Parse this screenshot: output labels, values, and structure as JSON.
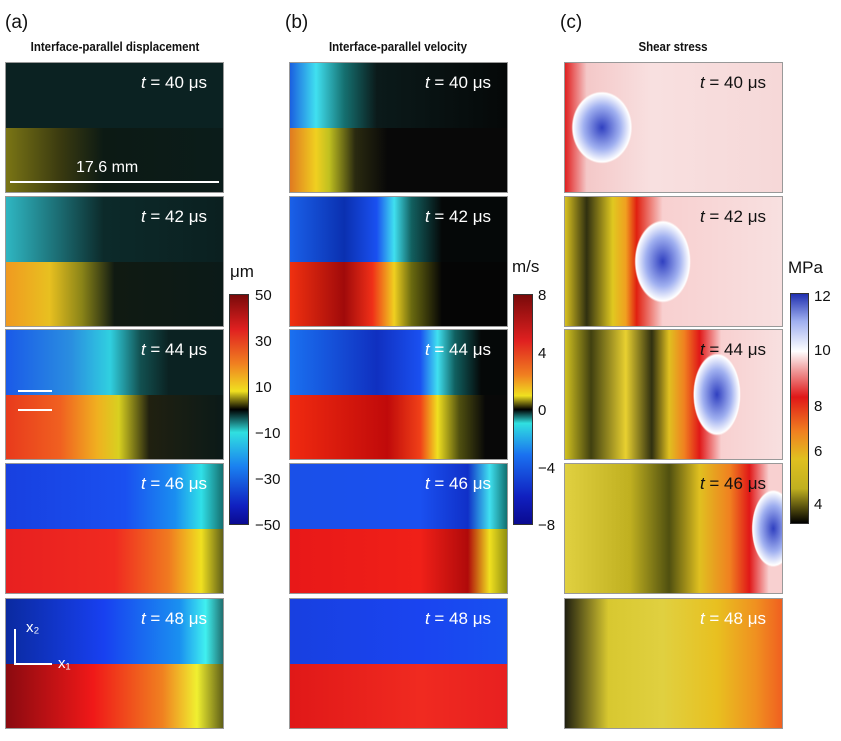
{
  "columns": [
    {
      "label": "(a)",
      "title": "Interface-parallel displacement",
      "unit": "μm",
      "ticks": [
        "50",
        "30",
        "10",
        "−10",
        "−30",
        "−50"
      ],
      "scale_bar": "17.6 mm"
    },
    {
      "label": "(b)",
      "title": "Interface-parallel velocity",
      "unit": "m/s",
      "ticks": [
        "8",
        "4",
        "0",
        "−4",
        "−8"
      ]
    },
    {
      "label": "(c)",
      "title": "Shear stress",
      "unit": "MPa",
      "ticks": [
        "12",
        "10",
        "8",
        "6",
        "4"
      ]
    }
  ],
  "time_symbol": "t",
  "times": [
    " = 40 μs",
    " = 42 μs",
    " = 44 μs",
    " = 46 μs",
    " = 48 μs"
  ],
  "axes": {
    "x1": "x₁",
    "x2": "x₂"
  }
}
